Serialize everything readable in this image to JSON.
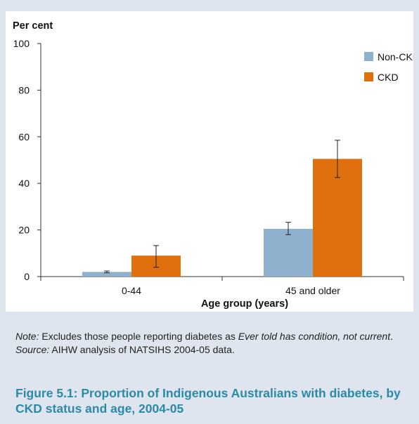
{
  "chart_data": {
    "type": "bar",
    "ylabel": "Per cent",
    "xlabel": "Age group (years)",
    "ylim": [
      0,
      100
    ],
    "yticks": [
      0,
      20,
      40,
      60,
      80,
      100
    ],
    "categories": [
      "0-44",
      "45 and older"
    ],
    "series": [
      {
        "name": "Non-CKD",
        "color": "#8eb1cd",
        "values": [
          2,
          20.5
        ],
        "error_low": [
          1.6,
          18
        ],
        "error_high": [
          2.4,
          23.3
        ]
      },
      {
        "name": "CKD",
        "color": "#e0700d",
        "values": [
          9,
          50.5
        ],
        "error_low": [
          4,
          42.5
        ],
        "error_high": [
          13.3,
          58.5
        ]
      }
    ],
    "legend_position": "top-right",
    "grid": false
  },
  "notes": {
    "note_lead": "Note:",
    "note_text": " Excludes those people reporting diabetes as ",
    "note_emph": "Ever told has condition, not current",
    "note_end": ".",
    "source_lead": "Source:",
    "source_text": " AIHW analysis of NATSIHS 2004-05 data."
  },
  "figure_title": "Figure 5.1: Proportion of Indigenous Australians with diabetes, by CKD status and age, 2004-05"
}
